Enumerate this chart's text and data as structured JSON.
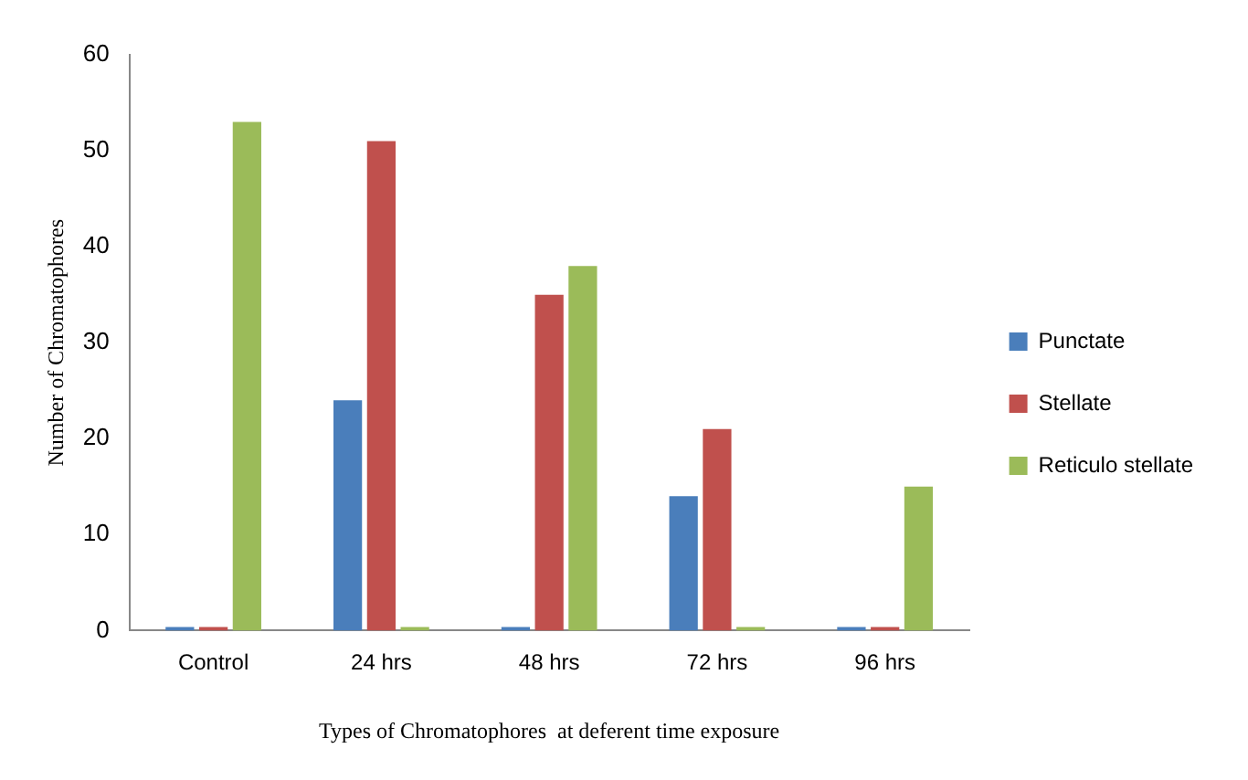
{
  "chart_data": {
    "type": "bar",
    "xlabel": "Types of Chromatophores  at deferent time exposure",
    "ylabel": "Number of Chromatophores",
    "categories": [
      "Control",
      "24 hrs",
      "48 hrs",
      "72 hrs",
      "96 hrs"
    ],
    "series": [
      {
        "name": "Punctate",
        "color": "#4a7ebb",
        "values": [
          0,
          24,
          0,
          14,
          0
        ]
      },
      {
        "name": "Stellate",
        "color": "#c0504d",
        "values": [
          0,
          51,
          35,
          21,
          0
        ]
      },
      {
        "name": "Reticulo stellate",
        "color": "#9bbb59",
        "values": [
          53,
          0,
          38,
          0,
          15
        ]
      }
    ],
    "ylim": [
      0,
      60
    ],
    "yticks": [
      0,
      10,
      20,
      30,
      40,
      50,
      60
    ],
    "grid": false,
    "legend": "right"
  }
}
